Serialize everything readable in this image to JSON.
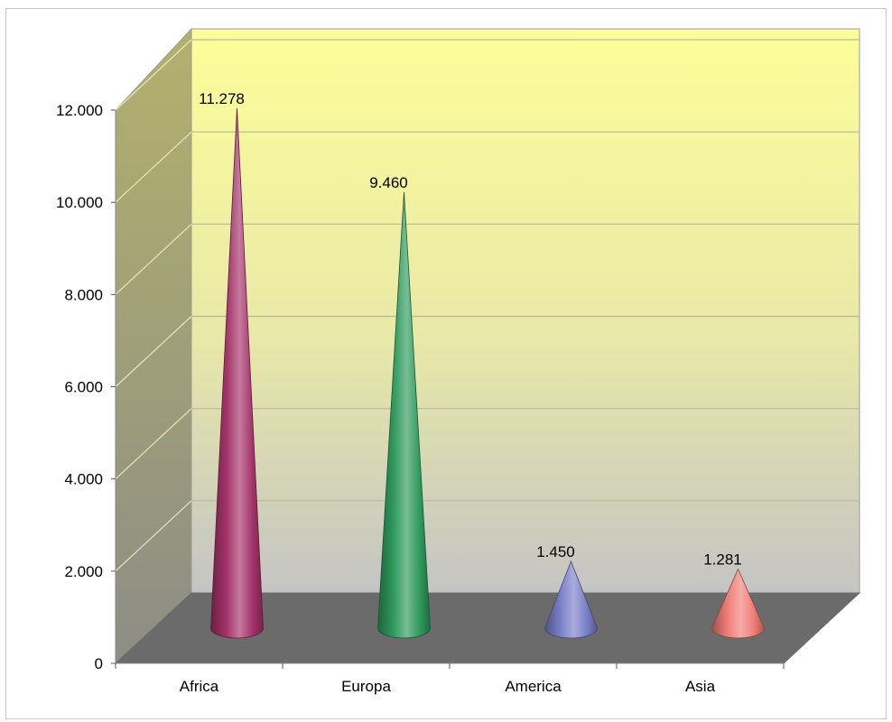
{
  "chart_data": {
    "type": "bar",
    "style": "3d-cone",
    "categories": [
      "Africa",
      "Europa",
      "America",
      "Asia"
    ],
    "values": [
      11278,
      9460,
      1450,
      1281
    ],
    "data_labels": [
      "11.278",
      "9.460",
      "1.450",
      "1.281"
    ],
    "series": [
      {
        "values": [
          11278,
          9460,
          1450,
          1281
        ]
      }
    ],
    "colors": [
      "#a3336a",
      "#2f9a5c",
      "#7a80c8",
      "#f07e78"
    ],
    "yticks": [
      {
        "value": 0,
        "label": "0"
      },
      {
        "value": 2000,
        "label": "2.000"
      },
      {
        "value": 4000,
        "label": "4.000"
      },
      {
        "value": 6000,
        "label": "6.000"
      },
      {
        "value": 8000,
        "label": "8.000"
      },
      {
        "value": 10000,
        "label": "10.000"
      },
      {
        "value": 12000,
        "label": "12.000"
      }
    ],
    "ylim": [
      0,
      12000
    ],
    "grid": true,
    "legend": "none",
    "background": {
      "wall_top": "#fdfd99",
      "wall_bottom": "#c6c6c6",
      "side_wall": "#a7a66d",
      "floor": "#6b6b6b"
    }
  }
}
